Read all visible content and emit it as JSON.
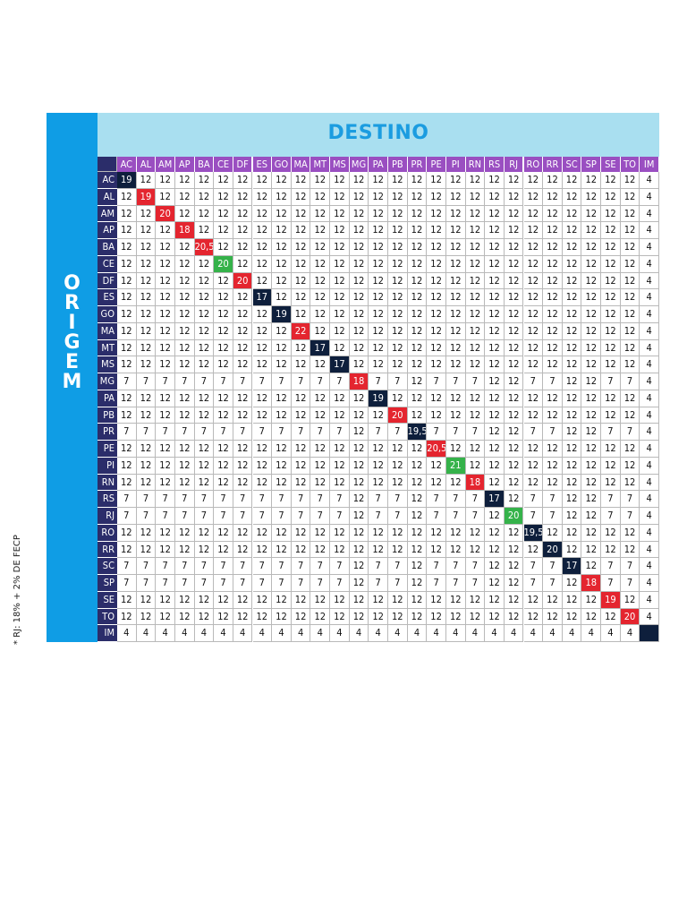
{
  "footnote": "* RJ: 18% + 2% DE FECP",
  "origem_label": "ORIGEM",
  "destino_label": "DESTINO",
  "states": [
    "AC",
    "AL",
    "AM",
    "AP",
    "BA",
    "CE",
    "DF",
    "ES",
    "GO",
    "MA",
    "MT",
    "MS",
    "MG",
    "PA",
    "PB",
    "PR",
    "PE",
    "PI",
    "RN",
    "RS",
    "RJ",
    "RO",
    "RR",
    "SC",
    "SP",
    "SE",
    "TO",
    "IM"
  ],
  "rows": [
    {
      "state": "AC",
      "values": [
        "19",
        "12",
        "12",
        "12",
        "12",
        "12",
        "12",
        "12",
        "12",
        "12",
        "12",
        "12",
        "12",
        "12",
        "12",
        "12",
        "12",
        "12",
        "12",
        "12",
        "12",
        "12",
        "12",
        "12",
        "12",
        "12",
        "12",
        "4"
      ]
    },
    {
      "state": "AL",
      "values": [
        "12",
        "19",
        "12",
        "12",
        "12",
        "12",
        "12",
        "12",
        "12",
        "12",
        "12",
        "12",
        "12",
        "12",
        "12",
        "12",
        "12",
        "12",
        "12",
        "12",
        "12",
        "12",
        "12",
        "12",
        "12",
        "12",
        "12",
        "4"
      ]
    },
    {
      "state": "AM",
      "values": [
        "12",
        "12",
        "20",
        "12",
        "12",
        "12",
        "12",
        "12",
        "12",
        "12",
        "12",
        "12",
        "12",
        "12",
        "12",
        "12",
        "12",
        "12",
        "12",
        "12",
        "12",
        "12",
        "12",
        "12",
        "12",
        "12",
        "12",
        "4"
      ]
    },
    {
      "state": "AP",
      "values": [
        "12",
        "12",
        "12",
        "18",
        "12",
        "12",
        "12",
        "12",
        "12",
        "12",
        "12",
        "12",
        "12",
        "12",
        "12",
        "12",
        "12",
        "12",
        "12",
        "12",
        "12",
        "12",
        "12",
        "12",
        "12",
        "12",
        "12",
        "4"
      ]
    },
    {
      "state": "BA",
      "values": [
        "12",
        "12",
        "12",
        "12",
        "20,5",
        "12",
        "12",
        "12",
        "12",
        "12",
        "12",
        "12",
        "12",
        "12",
        "12",
        "12",
        "12",
        "12",
        "12",
        "12",
        "12",
        "12",
        "12",
        "12",
        "12",
        "12",
        "12",
        "4"
      ]
    },
    {
      "state": "CE",
      "values": [
        "12",
        "12",
        "12",
        "12",
        "12",
        "20",
        "12",
        "12",
        "12",
        "12",
        "12",
        "12",
        "12",
        "12",
        "12",
        "12",
        "12",
        "12",
        "12",
        "12",
        "12",
        "12",
        "12",
        "12",
        "12",
        "12",
        "12",
        "4"
      ]
    },
    {
      "state": "DF",
      "values": [
        "12",
        "12",
        "12",
        "12",
        "12",
        "12",
        "20",
        "12",
        "12",
        "12",
        "12",
        "12",
        "12",
        "12",
        "12",
        "12",
        "12",
        "12",
        "12",
        "12",
        "12",
        "12",
        "12",
        "12",
        "12",
        "12",
        "12",
        "4"
      ]
    },
    {
      "state": "ES",
      "values": [
        "12",
        "12",
        "12",
        "12",
        "12",
        "12",
        "12",
        "17",
        "12",
        "12",
        "12",
        "12",
        "12",
        "12",
        "12",
        "12",
        "12",
        "12",
        "12",
        "12",
        "12",
        "12",
        "12",
        "12",
        "12",
        "12",
        "12",
        "4"
      ]
    },
    {
      "state": "GO",
      "values": [
        "12",
        "12",
        "12",
        "12",
        "12",
        "12",
        "12",
        "12",
        "19",
        "12",
        "12",
        "12",
        "12",
        "12",
        "12",
        "12",
        "12",
        "12",
        "12",
        "12",
        "12",
        "12",
        "12",
        "12",
        "12",
        "12",
        "12",
        "4"
      ]
    },
    {
      "state": "MA",
      "values": [
        "12",
        "12",
        "12",
        "12",
        "12",
        "12",
        "12",
        "12",
        "12",
        "22",
        "12",
        "12",
        "12",
        "12",
        "12",
        "12",
        "12",
        "12",
        "12",
        "12",
        "12",
        "12",
        "12",
        "12",
        "12",
        "12",
        "12",
        "4"
      ]
    },
    {
      "state": "MT",
      "values": [
        "12",
        "12",
        "12",
        "12",
        "12",
        "12",
        "12",
        "12",
        "12",
        "12",
        "17",
        "12",
        "12",
        "12",
        "12",
        "12",
        "12",
        "12",
        "12",
        "12",
        "12",
        "12",
        "12",
        "12",
        "12",
        "12",
        "12",
        "4"
      ]
    },
    {
      "state": "MS",
      "values": [
        "12",
        "12",
        "12",
        "12",
        "12",
        "12",
        "12",
        "12",
        "12",
        "12",
        "12",
        "17",
        "12",
        "12",
        "12",
        "12",
        "12",
        "12",
        "12",
        "12",
        "12",
        "12",
        "12",
        "12",
        "12",
        "12",
        "12",
        "4"
      ]
    },
    {
      "state": "MG",
      "values": [
        "7",
        "7",
        "7",
        "7",
        "7",
        "7",
        "7",
        "7",
        "7",
        "7",
        "7",
        "7",
        "18",
        "7",
        "7",
        "12",
        "7",
        "7",
        "7",
        "12",
        "12",
        "7",
        "7",
        "12",
        "12",
        "7",
        "7",
        "4"
      ]
    },
    {
      "state": "PA",
      "values": [
        "12",
        "12",
        "12",
        "12",
        "12",
        "12",
        "12",
        "12",
        "12",
        "12",
        "12",
        "12",
        "12",
        "19",
        "12",
        "12",
        "12",
        "12",
        "12",
        "12",
        "12",
        "12",
        "12",
        "12",
        "12",
        "12",
        "12",
        "4"
      ]
    },
    {
      "state": "PB",
      "values": [
        "12",
        "12",
        "12",
        "12",
        "12",
        "12",
        "12",
        "12",
        "12",
        "12",
        "12",
        "12",
        "12",
        "12",
        "20",
        "12",
        "12",
        "12",
        "12",
        "12",
        "12",
        "12",
        "12",
        "12",
        "12",
        "12",
        "12",
        "4"
      ]
    },
    {
      "state": "PR",
      "values": [
        "7",
        "7",
        "7",
        "7",
        "7",
        "7",
        "7",
        "7",
        "7",
        "7",
        "7",
        "7",
        "12",
        "7",
        "7",
        "19,5",
        "7",
        "7",
        "7",
        "12",
        "12",
        "7",
        "7",
        "12",
        "12",
        "7",
        "7",
        "4"
      ]
    },
    {
      "state": "PE",
      "values": [
        "12",
        "12",
        "12",
        "12",
        "12",
        "12",
        "12",
        "12",
        "12",
        "12",
        "12",
        "12",
        "12",
        "12",
        "12",
        "12",
        "20,5",
        "12",
        "12",
        "12",
        "12",
        "12",
        "12",
        "12",
        "12",
        "12",
        "12",
        "4"
      ]
    },
    {
      "state": "PI",
      "values": [
        "12",
        "12",
        "12",
        "12",
        "12",
        "12",
        "12",
        "12",
        "12",
        "12",
        "12",
        "12",
        "12",
        "12",
        "12",
        "12",
        "12",
        "21",
        "12",
        "12",
        "12",
        "12",
        "12",
        "12",
        "12",
        "12",
        "12",
        "4"
      ]
    },
    {
      "state": "RN",
      "values": [
        "12",
        "12",
        "12",
        "12",
        "12",
        "12",
        "12",
        "12",
        "12",
        "12",
        "12",
        "12",
        "12",
        "12",
        "12",
        "12",
        "12",
        "12",
        "18",
        "12",
        "12",
        "12",
        "12",
        "12",
        "12",
        "12",
        "12",
        "4"
      ]
    },
    {
      "state": "RS",
      "values": [
        "7",
        "7",
        "7",
        "7",
        "7",
        "7",
        "7",
        "7",
        "7",
        "7",
        "7",
        "7",
        "12",
        "7",
        "7",
        "12",
        "7",
        "7",
        "7",
        "17",
        "12",
        "7",
        "7",
        "12",
        "12",
        "7",
        "7",
        "4"
      ]
    },
    {
      "state": "RJ",
      "values": [
        "7",
        "7",
        "7",
        "7",
        "7",
        "7",
        "7",
        "7",
        "7",
        "7",
        "7",
        "7",
        "12",
        "7",
        "7",
        "12",
        "7",
        "7",
        "7",
        "12",
        "20",
        "7",
        "7",
        "12",
        "12",
        "7",
        "7",
        "4"
      ]
    },
    {
      "state": "RO",
      "values": [
        "12",
        "12",
        "12",
        "12",
        "12",
        "12",
        "12",
        "12",
        "12",
        "12",
        "12",
        "12",
        "12",
        "12",
        "12",
        "12",
        "12",
        "12",
        "12",
        "12",
        "12",
        "19,5",
        "12",
        "12",
        "12",
        "12",
        "12",
        "4"
      ]
    },
    {
      "state": "RR",
      "values": [
        "12",
        "12",
        "12",
        "12",
        "12",
        "12",
        "12",
        "12",
        "12",
        "12",
        "12",
        "12",
        "12",
        "12",
        "12",
        "12",
        "12",
        "12",
        "12",
        "12",
        "12",
        "12",
        "20",
        "12",
        "12",
        "12",
        "12",
        "4"
      ]
    },
    {
      "state": "SC",
      "values": [
        "7",
        "7",
        "7",
        "7",
        "7",
        "7",
        "7",
        "7",
        "7",
        "7",
        "7",
        "7",
        "12",
        "7",
        "7",
        "12",
        "7",
        "7",
        "7",
        "12",
        "12",
        "7",
        "7",
        "17",
        "12",
        "7",
        "7",
        "4"
      ]
    },
    {
      "state": "SP",
      "values": [
        "7",
        "7",
        "7",
        "7",
        "7",
        "7",
        "7",
        "7",
        "7",
        "7",
        "7",
        "7",
        "12",
        "7",
        "7",
        "12",
        "7",
        "7",
        "7",
        "12",
        "12",
        "7",
        "7",
        "12",
        "18",
        "7",
        "7",
        "4"
      ]
    },
    {
      "state": "SE",
      "values": [
        "12",
        "12",
        "12",
        "12",
        "12",
        "12",
        "12",
        "12",
        "12",
        "12",
        "12",
        "12",
        "12",
        "12",
        "12",
        "12",
        "12",
        "12",
        "12",
        "12",
        "12",
        "12",
        "12",
        "12",
        "12",
        "19",
        "12",
        "4"
      ]
    },
    {
      "state": "TO",
      "values": [
        "12",
        "12",
        "12",
        "12",
        "12",
        "12",
        "12",
        "12",
        "12",
        "12",
        "12",
        "12",
        "12",
        "12",
        "12",
        "12",
        "12",
        "12",
        "12",
        "12",
        "12",
        "12",
        "12",
        "12",
        "12",
        "12",
        "20",
        "4"
      ]
    },
    {
      "state": "IM",
      "values": [
        "4",
        "4",
        "4",
        "4",
        "4",
        "4",
        "4",
        "4",
        "4",
        "4",
        "4",
        "4",
        "4",
        "4",
        "4",
        "4",
        "4",
        "4",
        "4",
        "4",
        "4",
        "4",
        "4",
        "4",
        "4",
        "4",
        "4",
        ""
      ]
    }
  ],
  "highlight_colors": {
    "red": "#e4252f",
    "green": "#35b24a",
    "navy": "#0e1f3c"
  },
  "diagonal_highlights": [
    "navy",
    "red",
    "red",
    "red",
    "red",
    "green",
    "red",
    "navy",
    "navy",
    "red",
    "navy",
    "navy",
    "red",
    "navy",
    "red",
    "navy",
    "red",
    "green",
    "red",
    "navy",
    "green",
    "navy",
    "navy",
    "navy",
    "red",
    "red",
    "red",
    "navy"
  ]
}
